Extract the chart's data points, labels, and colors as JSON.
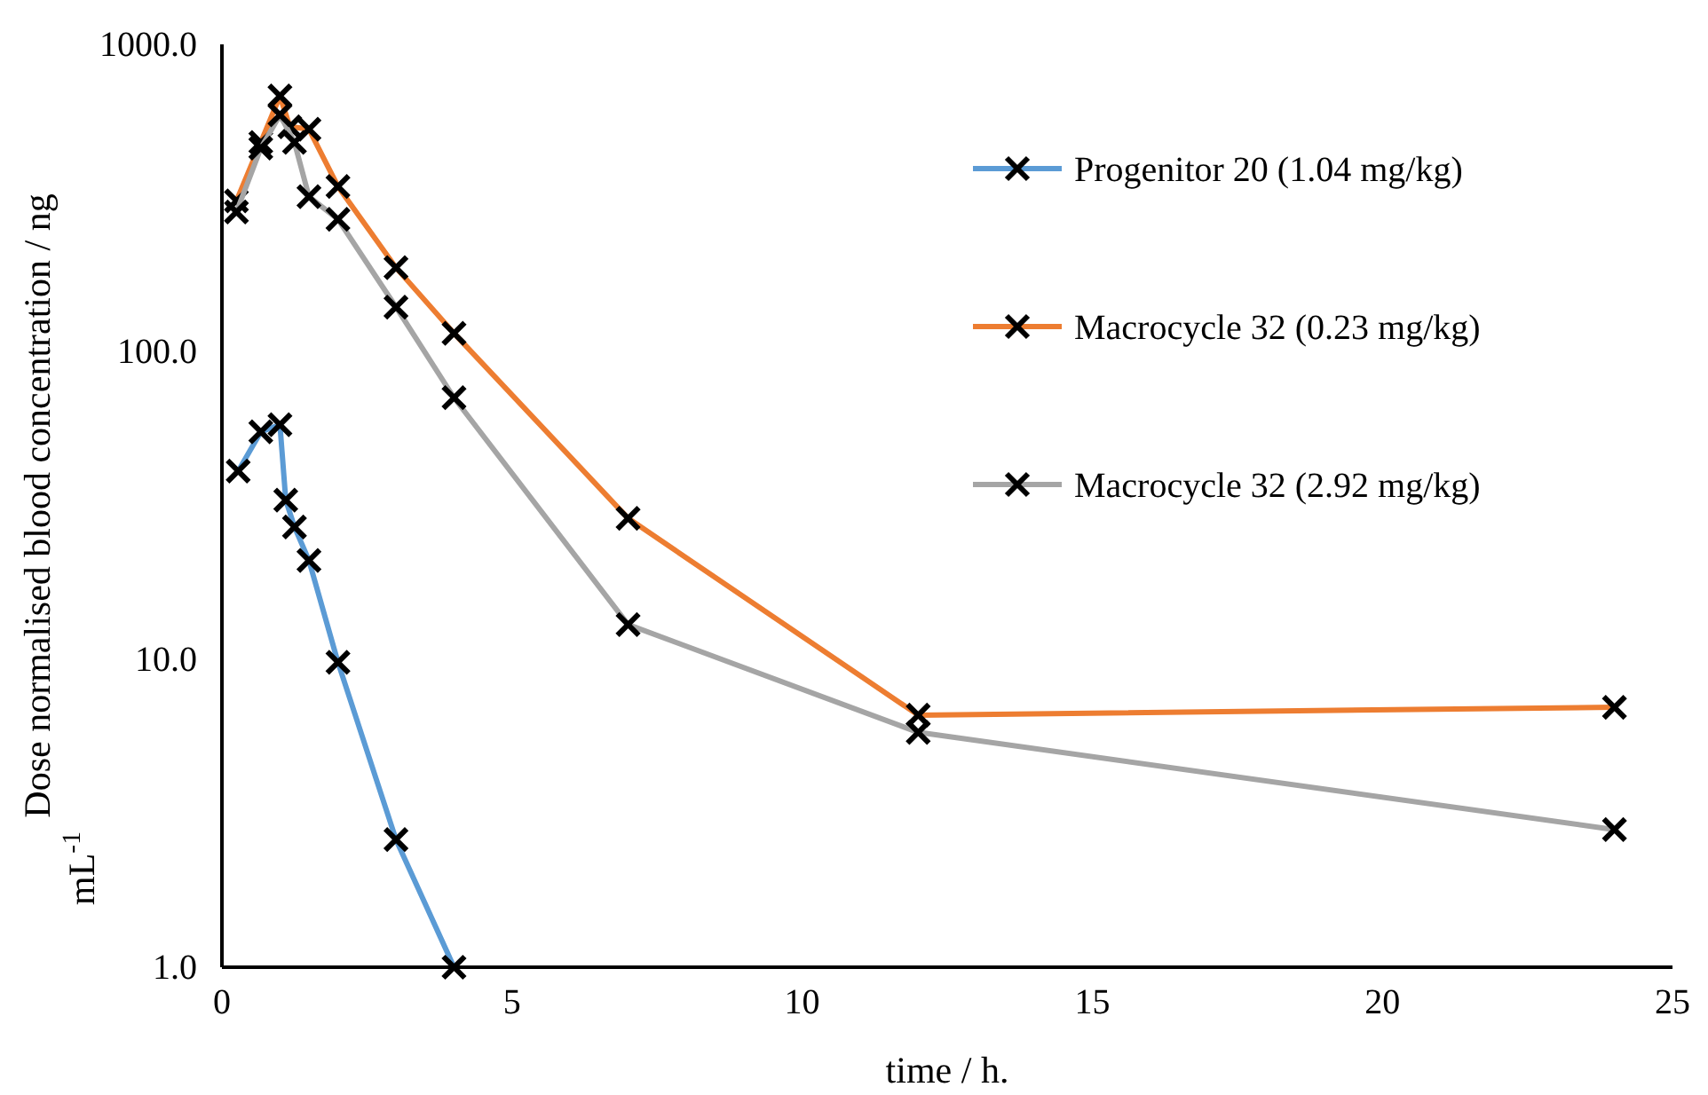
{
  "chart_data": {
    "type": "line",
    "xlabel": "time / h.",
    "ylabel": "Dose normalised blood concentration / ng mL$^{-1}$",
    "log": "y",
    "xlim": [
      0,
      25
    ],
    "xticks": [
      0,
      5,
      10,
      15,
      20,
      25
    ],
    "ylim": [
      1,
      1000
    ],
    "yticks": [
      {
        "value": 1,
        "label": "1.0"
      },
      {
        "value": 10,
        "label": "10.0"
      },
      {
        "value": 100,
        "label": "100.0"
      },
      {
        "value": 1000,
        "label": "1000.0"
      }
    ],
    "marker": "cross",
    "legend": "right",
    "grid": false,
    "series": [
      {
        "name": "Progenitor 20 (1.04 mg/kg)",
        "color": "#5b9bd5",
        "x": [
          0.28,
          0.67,
          1,
          1.1,
          1.25,
          1.5,
          2,
          3,
          4
        ],
        "values": [
          41,
          55,
          58,
          33,
          27,
          21,
          9.8,
          2.6,
          1.0
        ]
      },
      {
        "name": "Macrocycle 32 (0.23 mg/kg)",
        "color": "#ed7d31",
        "x": [
          0.25,
          0.67,
          1,
          1.17,
          1.5,
          2,
          3,
          4,
          7,
          12,
          24
        ],
        "values": [
          310,
          480,
          680,
          540,
          530,
          345,
          188,
          115,
          28.8,
          6.6,
          7.0
        ]
      },
      {
        "name": "Macrocycle 32 (2.92 mg/kg)",
        "color": "#a5a5a5",
        "x": [
          0.25,
          0.67,
          1,
          1.25,
          1.5,
          2,
          3,
          4,
          7,
          12,
          24
        ],
        "values": [
          285,
          460,
          590,
          480,
          320,
          270,
          140,
          71,
          13,
          5.8,
          2.8
        ]
      }
    ]
  }
}
